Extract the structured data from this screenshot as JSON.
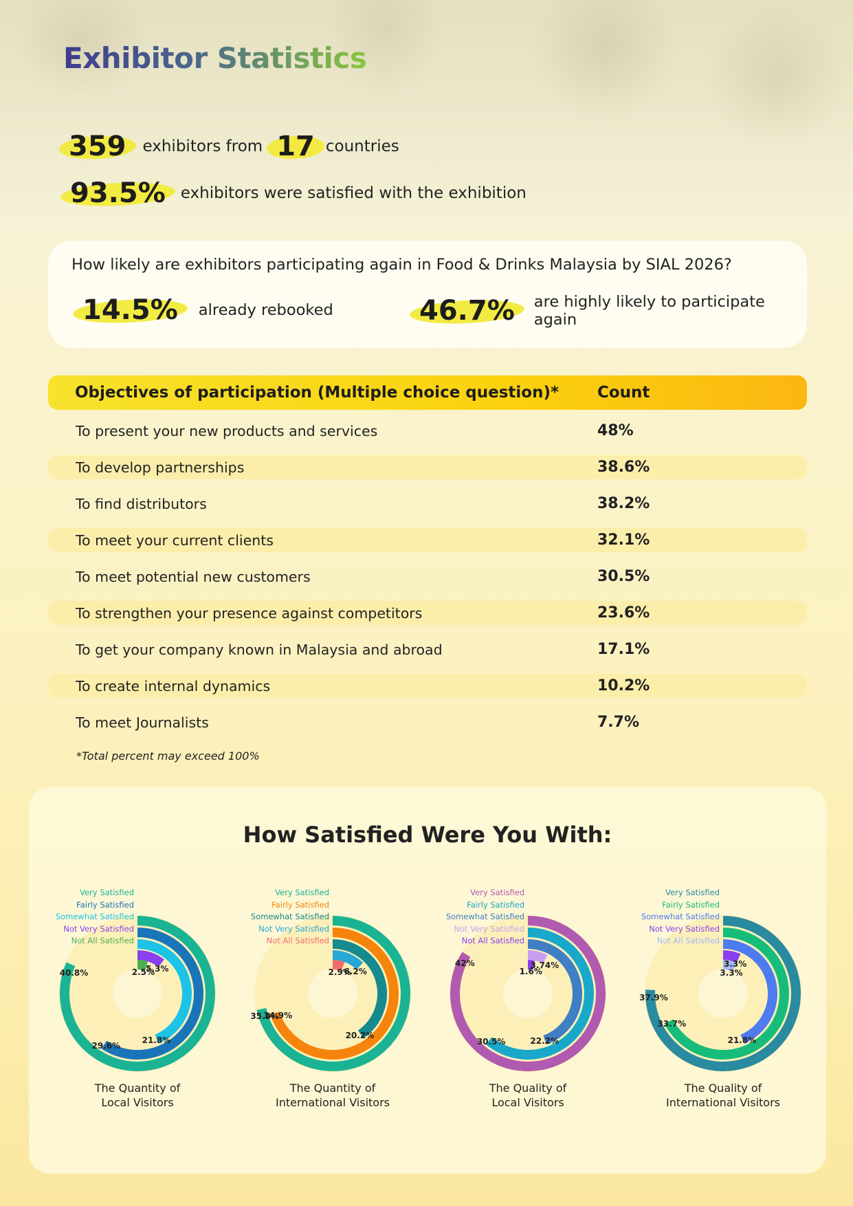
{
  "title": "Exhibitor Statistics",
  "stats": {
    "exhibitors": "359",
    "exhibitors_label": "exhibitors from",
    "countries": "17",
    "countries_label": "countries",
    "satisfied_pct": "93.5%",
    "satisfied_label": "exhibitors were satisfied with the exhibition"
  },
  "likely": {
    "question": "How likely are exhibitors participating again in Food & Drinks Malaysia by SIAL 2026?",
    "rebooked_pct": "14.5%",
    "rebooked_label": "already rebooked",
    "highly_pct": "46.7%",
    "highly_label": "are highly likely to participate again"
  },
  "objectives": {
    "header_label": "Objectives of participation (Multiple choice question)*",
    "header_count": "Count",
    "rows": [
      {
        "label": "To present your new products and services",
        "value": "48%"
      },
      {
        "label": "To develop partnerships",
        "value": "38.6%"
      },
      {
        "label": "To find distributors",
        "value": "38.2%"
      },
      {
        "label": "To meet your current clients",
        "value": "32.1%"
      },
      {
        "label": "To meet potential new customers",
        "value": "30.5%"
      },
      {
        "label": "To strengthen your presence against competitors",
        "value": "23.6%"
      },
      {
        "label": "To get your company known in Malaysia and abroad",
        "value": "17.1%"
      },
      {
        "label": "To create internal dynamics",
        "value": "10.2%"
      },
      {
        "label": "To meet Journalists",
        "value": "7.7%"
      }
    ],
    "footnote": "*Total percent may exceed 100%"
  },
  "satisfaction": {
    "heading": "How Satisfied Were You With:"
  },
  "chart_data": [
    {
      "type": "radial-bar",
      "caption": [
        "The Quantity of",
        "Local Visitors"
      ],
      "categories": [
        "Very Satisfied",
        "Fairly Satisfied",
        "Somewhat Satisfied",
        "Not Very Satisfied",
        "Not All Satisfied"
      ],
      "values": [
        40.8,
        29.6,
        21.8,
        5.3,
        2.5
      ],
      "labels": [
        "40.8%",
        "29.6%",
        "21.8%",
        "5.3%",
        "2.5%"
      ],
      "colors": [
        "#1ab394",
        "#1a75b8",
        "#1cc3e6",
        "#8a3ff0",
        "#4caf50"
      ]
    },
    {
      "type": "radial-bar",
      "caption": [
        "The Quantity of",
        "International Visitors"
      ],
      "categories": [
        "Very Satisfied",
        "Fairly Satisfied",
        "Somewhat Satisfied",
        "Not Very Satisfied",
        "Not All Satisfied"
      ],
      "values": [
        35.8,
        34.9,
        20.2,
        6.2,
        2.9
      ],
      "labels": [
        "35.8%",
        "34.9%",
        "20.2%",
        "6.2%",
        "2.9%"
      ],
      "colors": [
        "#1ab394",
        "#f5840c",
        "#168a8e",
        "#26a7d8",
        "#f26d6d"
      ]
    },
    {
      "type": "radial-bar",
      "caption": [
        "The Quality of",
        "Local Visitors"
      ],
      "categories": [
        "Very Satisfied",
        "Fairly Satisfied",
        "Somewhat Satisfied",
        "Not Very Satisfied",
        "Not All Satisfied"
      ],
      "values": [
        42,
        30.5,
        22.2,
        3.74,
        1.6
      ],
      "labels": [
        "42%",
        "30.5%",
        "22.2%",
        "3.74%",
        "1.6%"
      ],
      "colors": [
        "#b05ab0",
        "#19a8c9",
        "#3f7fc4",
        "#c89ef3",
        "#8a3ff0"
      ]
    },
    {
      "type": "radial-bar",
      "caption": [
        "The Quality of",
        "International Visitors"
      ],
      "categories": [
        "Very Satisfied",
        "Fairly Satisfied",
        "Somewhat Satisfied",
        "Not Very Satisfied",
        "Not All Satisfied"
      ],
      "values": [
        37.9,
        33.7,
        21.8,
        3.3,
        3.3
      ],
      "labels": [
        "37.9%",
        "33.7%",
        "21.8%",
        "3.3%",
        "3.3%"
      ],
      "colors": [
        "#2a8aa0",
        "#18bc7a",
        "#4e7cf0",
        "#8a3ff0",
        "#a7b8f3"
      ]
    }
  ]
}
